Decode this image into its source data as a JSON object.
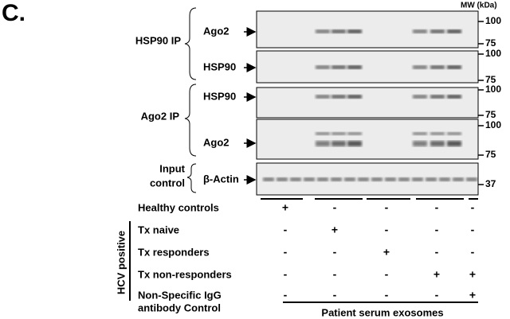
{
  "panel_label": "C.",
  "mw_header": "MW (kDa)",
  "ip_groups": [
    {
      "lines": [
        "HSP90 IP"
      ]
    },
    {
      "lines": [
        "Ago2 IP"
      ]
    },
    {
      "lines": [
        "Input",
        "control"
      ]
    }
  ],
  "blots": [
    {
      "label": "Ago2",
      "markers": [
        "100",
        "75"
      ]
    },
    {
      "label": "HSP90",
      "markers": [
        "100",
        "75"
      ]
    },
    {
      "label": "HSP90",
      "markers": [
        "100",
        "75"
      ]
    },
    {
      "label": "Ago2",
      "markers": [
        "100",
        "75"
      ]
    },
    {
      "label": "β-Actin",
      "markers": [
        "37"
      ]
    }
  ],
  "group_label": "HCV positive",
  "conditions": [
    {
      "lines": [
        "Healthy controls"
      ],
      "signs": [
        "+",
        "-",
        "-",
        "-",
        "-"
      ]
    },
    {
      "lines": [
        "Tx naive"
      ],
      "signs": [
        "-",
        "+",
        "-",
        "-",
        "-"
      ]
    },
    {
      "lines": [
        "Tx responders"
      ],
      "signs": [
        "-",
        "-",
        "+",
        "-",
        "-"
      ]
    },
    {
      "lines": [
        "Tx non-responders"
      ],
      "signs": [
        "-",
        "-",
        "-",
        "+",
        "+"
      ]
    },
    {
      "lines": [
        "Non-Specific IgG",
        "antibody Control"
      ],
      "signs": [
        "-",
        "-",
        "-",
        "-",
        "+"
      ]
    }
  ],
  "footer": "Patient serum exosomes"
}
